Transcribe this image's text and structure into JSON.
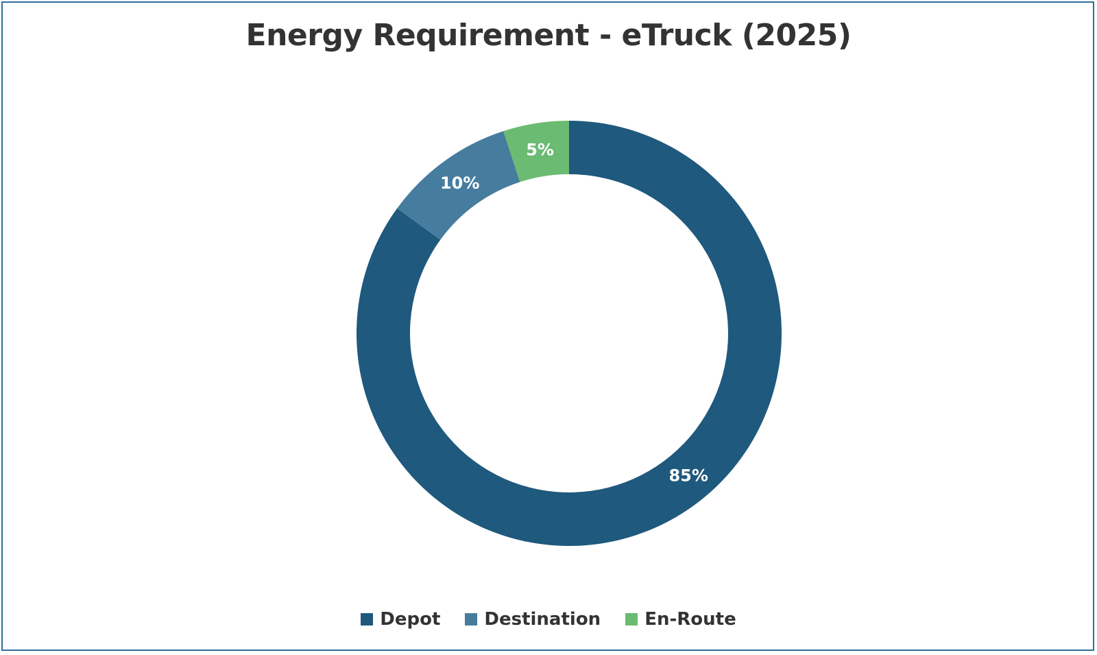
{
  "chart_data": {
    "type": "pie",
    "variant": "donut",
    "title": "Energy Requirement - eTruck (2025)",
    "categories": [
      "Depot",
      "Destination",
      "En-Route"
    ],
    "values": [
      85,
      10,
      5
    ],
    "labels": [
      "85%",
      "10%",
      "5%"
    ],
    "colors": [
      "#1f597d",
      "#467c9e",
      "#6bbb72"
    ],
    "legend_position": "bottom"
  }
}
